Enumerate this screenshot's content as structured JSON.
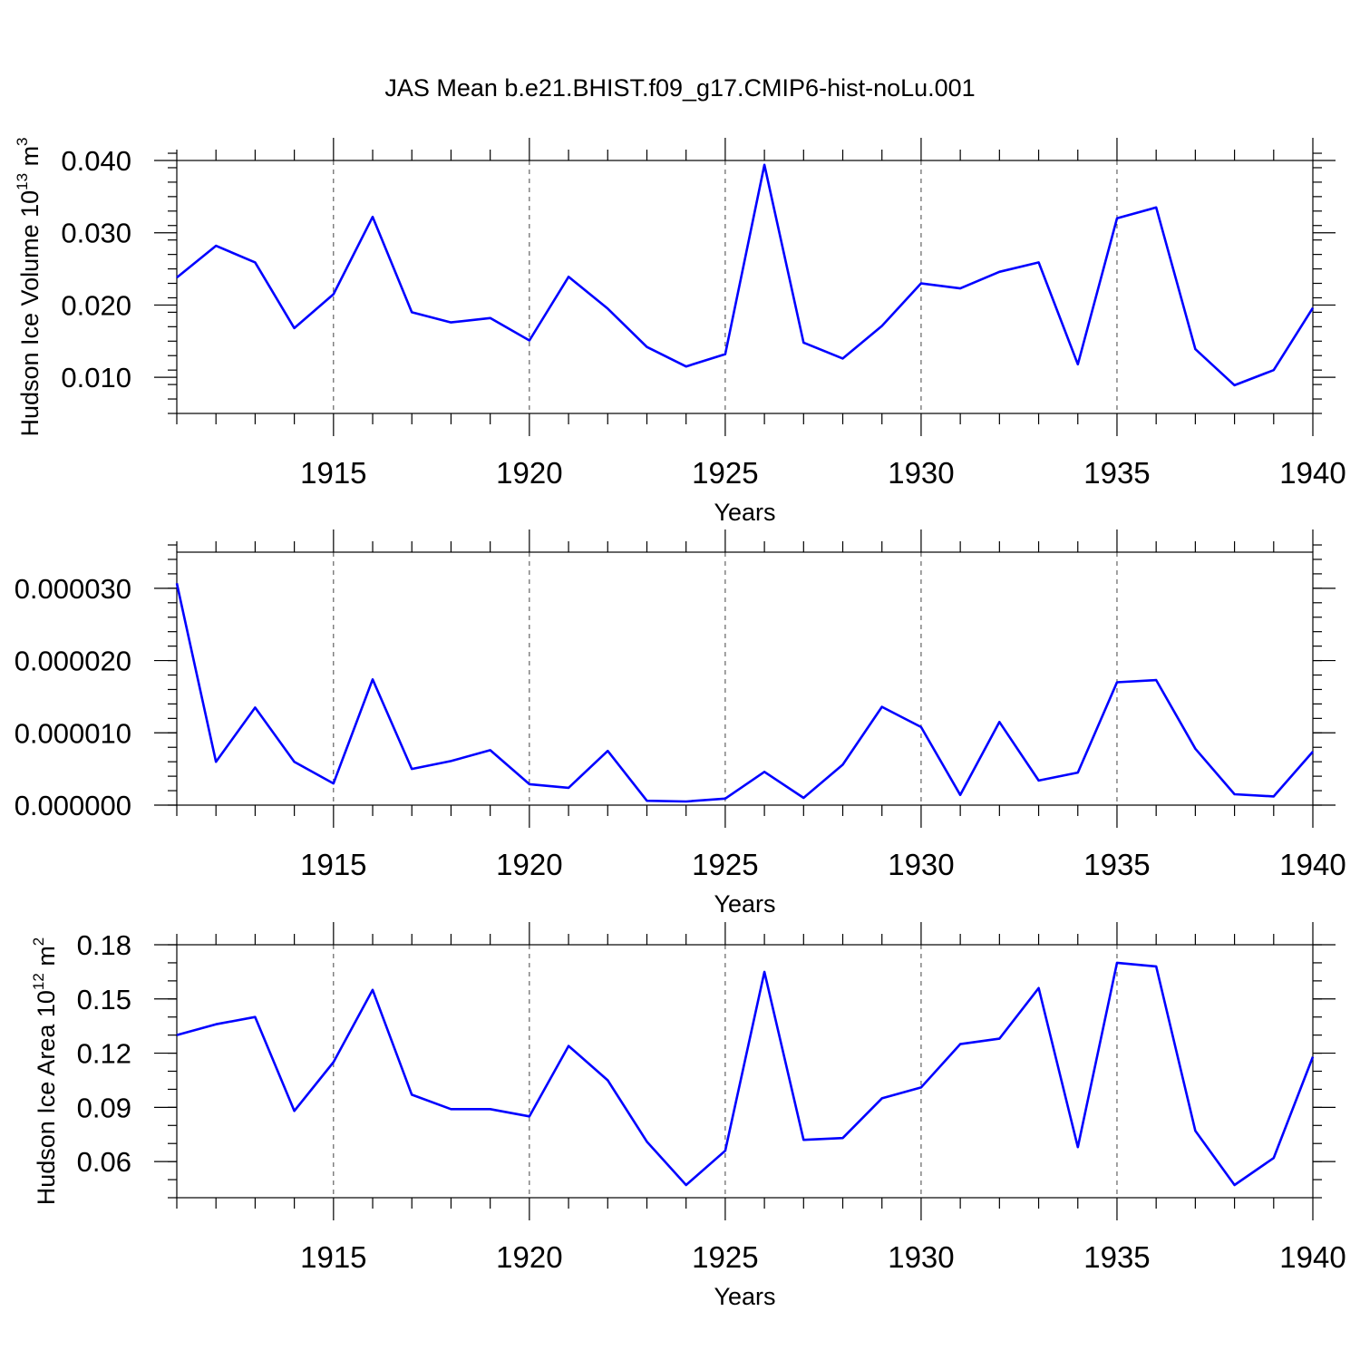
{
  "title": "JAS Mean b.e21.BHIST.f09_g17.CMIP6-hist-noLu.001",
  "line_color": "#0000ff",
  "chart_data": [
    {
      "type": "line",
      "xlabel": "Years",
      "ylabel": "Hudson Ice Volume 10",
      "ylabel_sup": "13",
      "ylabel_unit": " m",
      "ylabel_unit_sup": "3",
      "xlim": [
        1911,
        1940
      ],
      "ylim": [
        0.005,
        0.04
      ],
      "xticks": [
        1915,
        1920,
        1925,
        1930,
        1935,
        1940
      ],
      "xtick_labels": [
        "1915",
        "1920",
        "1925",
        "1930",
        "1935",
        "1940"
      ],
      "yticks": [
        0.01,
        0.02,
        0.03,
        0.04
      ],
      "ytick_labels": [
        "0.010",
        "0.020",
        "0.030",
        "0.040"
      ],
      "y_minor_step": 0.002,
      "x": [
        1911,
        1912,
        1913,
        1914,
        1915,
        1916,
        1917,
        1918,
        1919,
        1920,
        1921,
        1922,
        1923,
        1924,
        1925,
        1926,
        1927,
        1928,
        1929,
        1930,
        1931,
        1932,
        1933,
        1934,
        1935,
        1936,
        1937,
        1938,
        1939,
        1940
      ],
      "values": [
        0.0238,
        0.0282,
        0.0259,
        0.0168,
        0.0215,
        0.0322,
        0.019,
        0.0176,
        0.0182,
        0.0151,
        0.0239,
        0.0195,
        0.0142,
        0.0115,
        0.0132,
        0.0394,
        0.0148,
        0.0126,
        0.0171,
        0.023,
        0.0223,
        0.0246,
        0.0259,
        0.0118,
        0.032,
        0.0335,
        0.0139,
        0.0089,
        0.011,
        0.0196
      ]
    },
    {
      "type": "line",
      "xlabel": "Years",
      "ylabel": "",
      "xlim": [
        1911,
        1940
      ],
      "ylim": [
        0.0,
        3.5e-05
      ],
      "xticks": [
        1915,
        1920,
        1925,
        1930,
        1935,
        1940
      ],
      "xtick_labels": [
        "1915",
        "1920",
        "1925",
        "1930",
        "1935",
        "1940"
      ],
      "yticks": [
        0.0,
        1e-05,
        2e-05,
        3e-05
      ],
      "ytick_labels": [
        "0.000000",
        "0.000010",
        "0.000020",
        "0.000030"
      ],
      "y_minor_step": 2e-06,
      "x": [
        1911,
        1912,
        1913,
        1914,
        1915,
        1916,
        1917,
        1918,
        1919,
        1920,
        1921,
        1922,
        1923,
        1924,
        1925,
        1926,
        1927,
        1928,
        1929,
        1930,
        1931,
        1932,
        1933,
        1934,
        1935,
        1936,
        1937,
        1938,
        1939,
        1940
      ],
      "values": [
        3.07e-05,
        6e-06,
        1.35e-05,
        6e-06,
        3e-06,
        1.74e-05,
        5e-06,
        6.1e-06,
        7.6e-06,
        2.9e-06,
        2.4e-06,
        7.5e-06,
        6e-07,
        5e-07,
        9e-07,
        4.6e-06,
        1e-06,
        5.6e-06,
        1.36e-05,
        1.08e-05,
        1.4e-06,
        1.15e-05,
        3.4e-06,
        4.5e-06,
        1.7e-05,
        1.73e-05,
        7.8e-06,
        1.5e-06,
        1.2e-06,
        7.4e-06
      ]
    },
    {
      "type": "line",
      "xlabel": "Years",
      "ylabel": "Hudson Ice Area 10",
      "ylabel_sup": "12",
      "ylabel_unit": " m",
      "ylabel_unit_sup": "2",
      "xlim": [
        1911,
        1940
      ],
      "ylim": [
        0.04,
        0.18
      ],
      "xticks": [
        1915,
        1920,
        1925,
        1930,
        1935,
        1940
      ],
      "xtick_labels": [
        "1915",
        "1920",
        "1925",
        "1930",
        "1935",
        "1940"
      ],
      "yticks": [
        0.06,
        0.09,
        0.12,
        0.15,
        0.18
      ],
      "ytick_labels": [
        "0.06",
        "0.09",
        "0.12",
        "0.15",
        "0.18"
      ],
      "y_minor_step": 0.01,
      "x": [
        1911,
        1912,
        1913,
        1914,
        1915,
        1916,
        1917,
        1918,
        1919,
        1920,
        1921,
        1922,
        1923,
        1924,
        1925,
        1926,
        1927,
        1928,
        1929,
        1930,
        1931,
        1932,
        1933,
        1934,
        1935,
        1936,
        1937,
        1938,
        1939,
        1940
      ],
      "values": [
        0.13,
        0.136,
        0.14,
        0.088,
        0.115,
        0.155,
        0.097,
        0.089,
        0.089,
        0.085,
        0.124,
        0.105,
        0.071,
        0.047,
        0.066,
        0.165,
        0.072,
        0.073,
        0.095,
        0.101,
        0.125,
        0.128,
        0.156,
        0.068,
        0.17,
        0.168,
        0.077,
        0.047,
        0.062,
        0.118
      ]
    }
  ]
}
